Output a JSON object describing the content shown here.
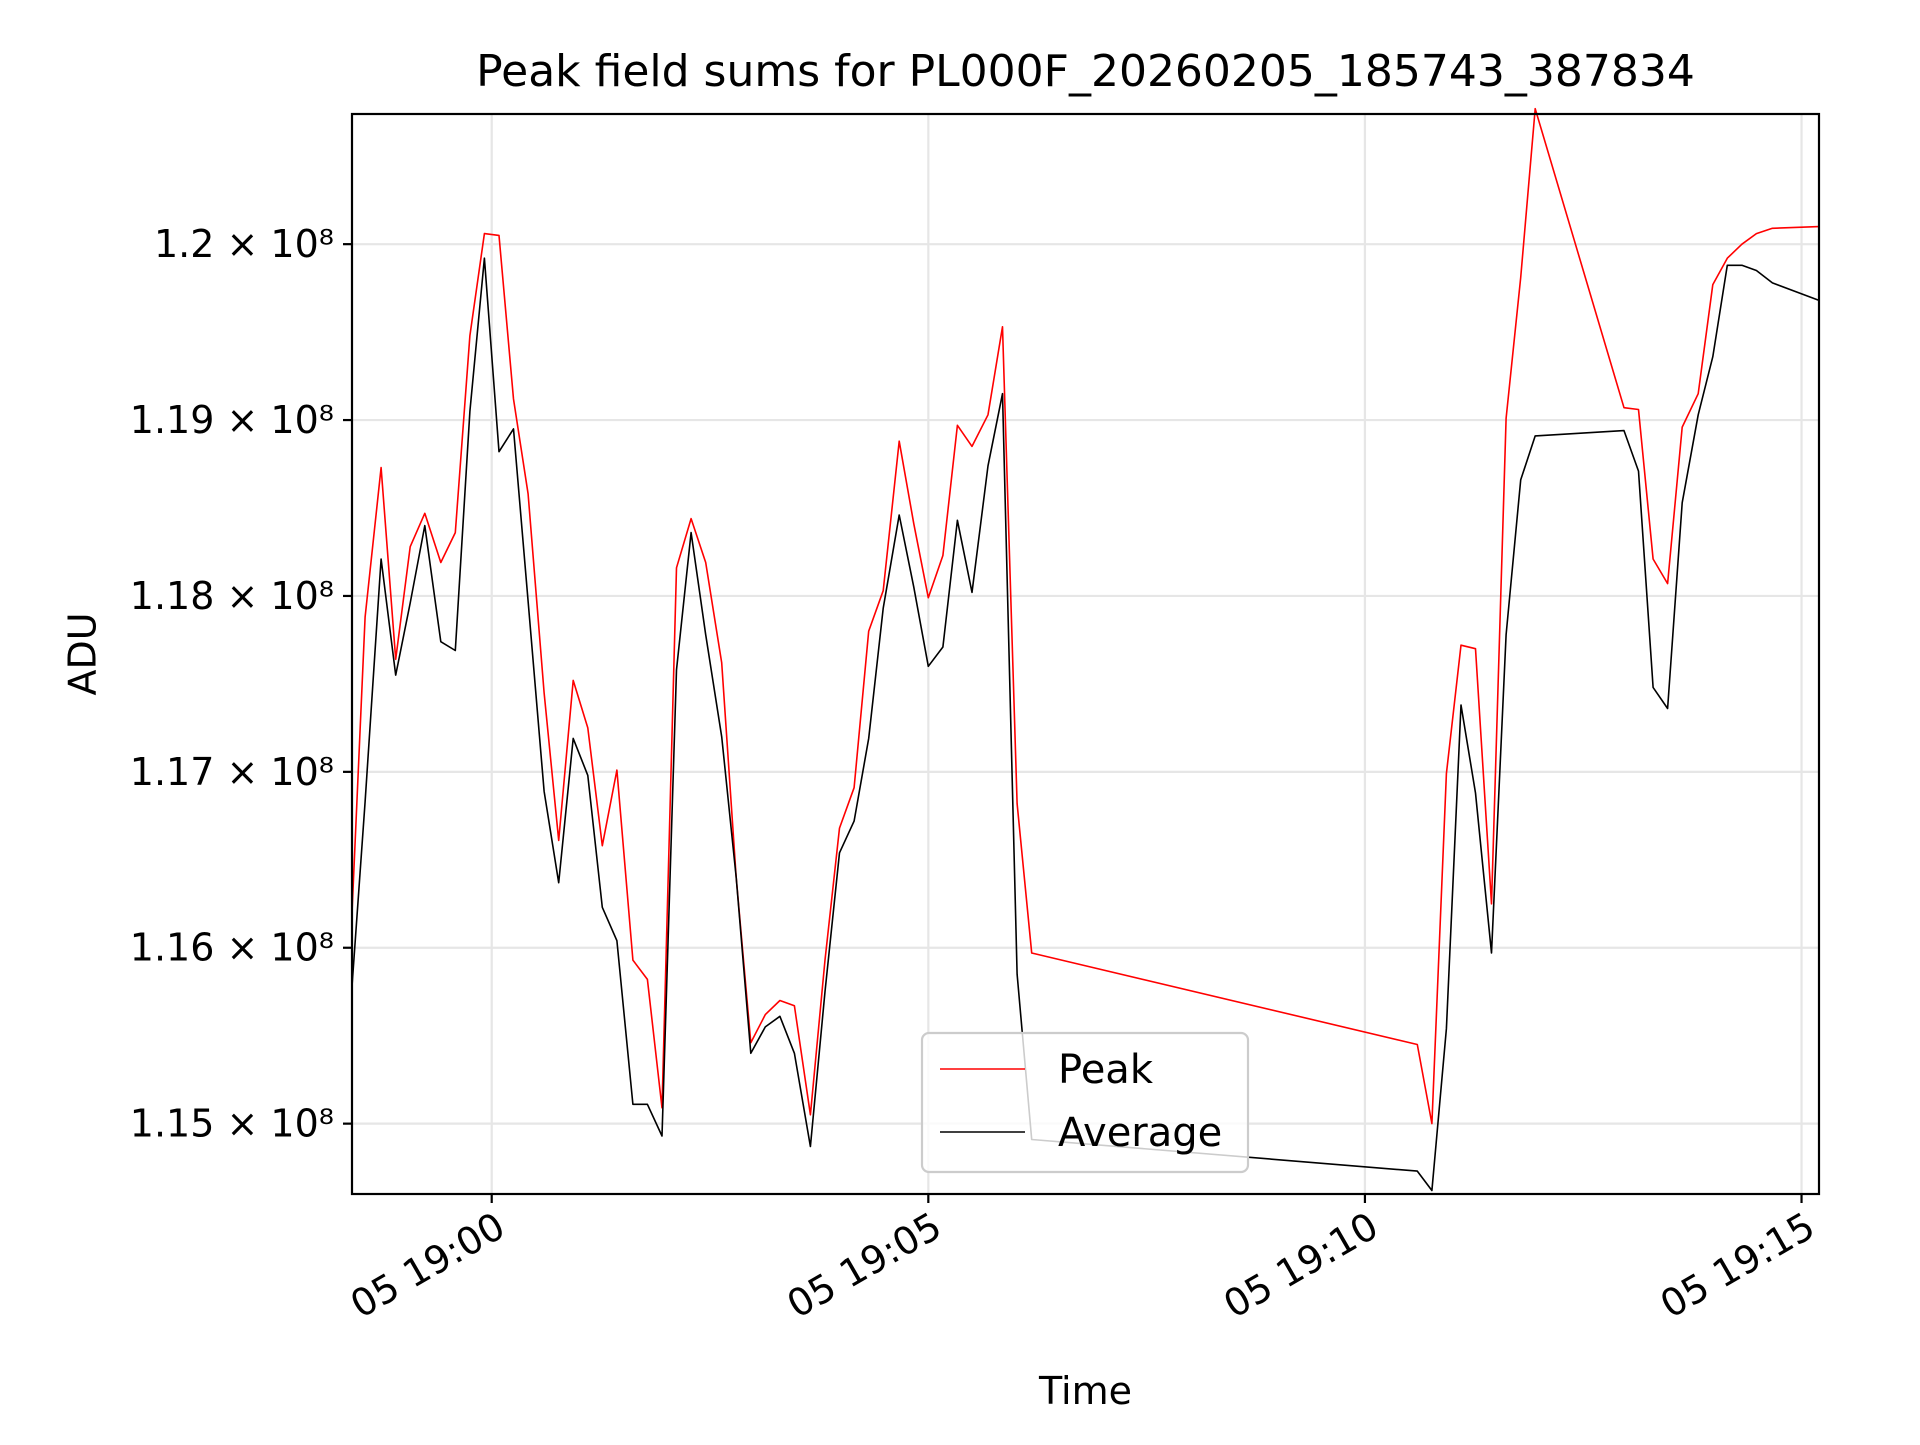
{
  "chart_data": {
    "type": "line",
    "title": "Peak field sums for PL000F_20260205_185743_387834",
    "xlabel": "Time",
    "ylabel": "ADU",
    "xlim": [
      "05 18:58:24",
      "05 19:15:12"
    ],
    "ylim": [
      114600000,
      120740000
    ],
    "grid": true,
    "legend_position": "lower center",
    "x_ticks": [
      {
        "value": "05 19:00:00",
        "label": "05 19:00"
      },
      {
        "value": "05 19:05:00",
        "label": "05 19:05"
      },
      {
        "value": "05 19:10:00",
        "label": "05 19:10"
      },
      {
        "value": "05 19:15:00",
        "label": "05 19:15"
      }
    ],
    "y_ticks": [
      {
        "value": 115000000,
        "label": "1.15 × 10⁸"
      },
      {
        "value": 116000000,
        "label": "1.16 × 10⁸"
      },
      {
        "value": 117000000,
        "label": "1.17 × 10⁸"
      },
      {
        "value": 118000000,
        "label": "1.18 × 10⁸"
      },
      {
        "value": 119000000,
        "label": "1.19 × 10⁸"
      },
      {
        "value": 120000000,
        "label": "1.2 × 10⁸"
      }
    ],
    "x": [
      "05 18:58:24",
      "05 18:58:33",
      "05 18:58:44",
      "05 18:58:54",
      "05 18:59:04",
      "05 18:59:14",
      "05 18:59:25",
      "05 18:59:35",
      "05 18:59:45",
      "05 18:59:55",
      "05 19:00:05",
      "05 19:00:15",
      "05 19:00:25",
      "05 19:00:36",
      "05 19:00:46",
      "05 19:00:56",
      "05 19:01:06",
      "05 19:01:16",
      "05 19:01:26",
      "05 19:01:37",
      "05 19:01:47",
      "05 19:01:57",
      "05 19:02:07",
      "05 19:02:17",
      "05 19:02:27",
      "05 19:02:38",
      "05 19:02:48",
      "05 19:02:58",
      "05 19:03:08",
      "05 19:03:18",
      "05 19:03:28",
      "05 19:03:39",
      "05 19:03:49",
      "05 19:03:59",
      "05 19:04:09",
      "05 19:04:19",
      "05 19:04:29",
      "05 19:04:40",
      "05 19:04:50",
      "05 19:05:00",
      "05 19:05:10",
      "05 19:05:20",
      "05 19:05:30",
      "05 19:05:41",
      "05 19:05:51",
      "05 19:06:01",
      "05 19:06:11",
      "05 19:10:36",
      "05 19:10:46",
      "05 19:10:56",
      "05 19:11:06",
      "05 19:11:16",
      "05 19:11:27",
      "05 19:11:37",
      "05 19:11:47",
      "05 19:11:57",
      "05 19:12:58",
      "05 19:13:08",
      "05 19:13:18",
      "05 19:13:28",
      "05 19:13:38",
      "05 19:13:49",
      "05 19:13:59",
      "05 19:14:09",
      "05 19:14:19",
      "05 19:14:29",
      "05 19:14:40",
      "05 19:15:12"
    ],
    "series": [
      {
        "name": "Peak",
        "color": "#ff0000",
        "values": [
          116200000,
          117880000,
          118730000,
          117640000,
          118280000,
          118470000,
          118190000,
          118360000,
          119480000,
          120060000,
          120050000,
          119120000,
          118580000,
          117450000,
          116610000,
          117520000,
          117250000,
          116580000,
          117010000,
          115930000,
          115820000,
          115090000,
          118160000,
          118440000,
          118190000,
          117620000,
          116400000,
          115460000,
          115620000,
          115700000,
          115670000,
          115050000,
          115930000,
          116680000,
          116910000,
          117800000,
          118030000,
          118880000,
          118410000,
          117990000,
          118230000,
          118970000,
          118850000,
          119030000,
          119530000,
          116820000,
          115970000,
          115450000,
          115000000,
          116990000,
          117720000,
          117700000,
          116250000,
          119010000,
          119810000,
          120770000,
          119070000,
          119060000,
          118210000,
          118070000,
          118960000,
          119150000,
          119770000,
          119920000,
          120000000,
          120060000,
          120090000,
          120100000
        ]
      },
      {
        "name": "Average",
        "color": "#000000",
        "values": [
          115780000,
          116830000,
          118210000,
          117550000,
          117960000,
          118400000,
          117740000,
          117690000,
          119050000,
          119920000,
          118820000,
          118950000,
          117970000,
          116890000,
          116370000,
          117190000,
          116980000,
          116230000,
          116040000,
          115110000,
          115110000,
          114930000,
          117580000,
          118360000,
          117780000,
          117200000,
          116400000,
          115400000,
          115550000,
          115610000,
          115400000,
          114870000,
          115750000,
          116540000,
          116720000,
          117190000,
          117930000,
          118460000,
          118050000,
          117600000,
          117710000,
          118430000,
          118020000,
          118740000,
          119150000,
          115850000,
          114910000,
          114730000,
          114620000,
          115540000,
          117380000,
          116880000,
          115970000,
          117780000,
          118660000,
          118910000,
          118940000,
          118710000,
          117480000,
          117360000,
          118530000,
          119030000,
          119360000,
          119880000,
          119880000,
          119850000,
          119780000,
          119680000
        ]
      }
    ]
  }
}
